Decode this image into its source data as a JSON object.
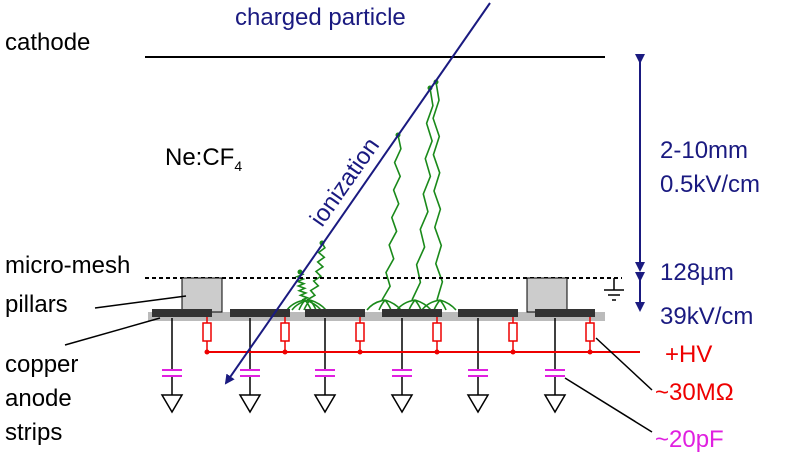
{
  "particle": "charged particle",
  "ionization": "ionization",
  "cathode": "cathode",
  "gas": {
    "main": "Ne:CF",
    "subscript": "4"
  },
  "drift": {
    "gap": "2-10mm",
    "field": "0.5kV/cm"
  },
  "micro_mesh": "micro-mesh",
  "pillars": "pillars",
  "amplification": {
    "gap": "128µm",
    "field": "39kV/cm"
  },
  "anode": {
    "line1": "copper",
    "line2": "anode",
    "line3": "strips"
  },
  "hv": "+HV",
  "resistor": "~30MΩ",
  "capacitor": "~20pF"
}
